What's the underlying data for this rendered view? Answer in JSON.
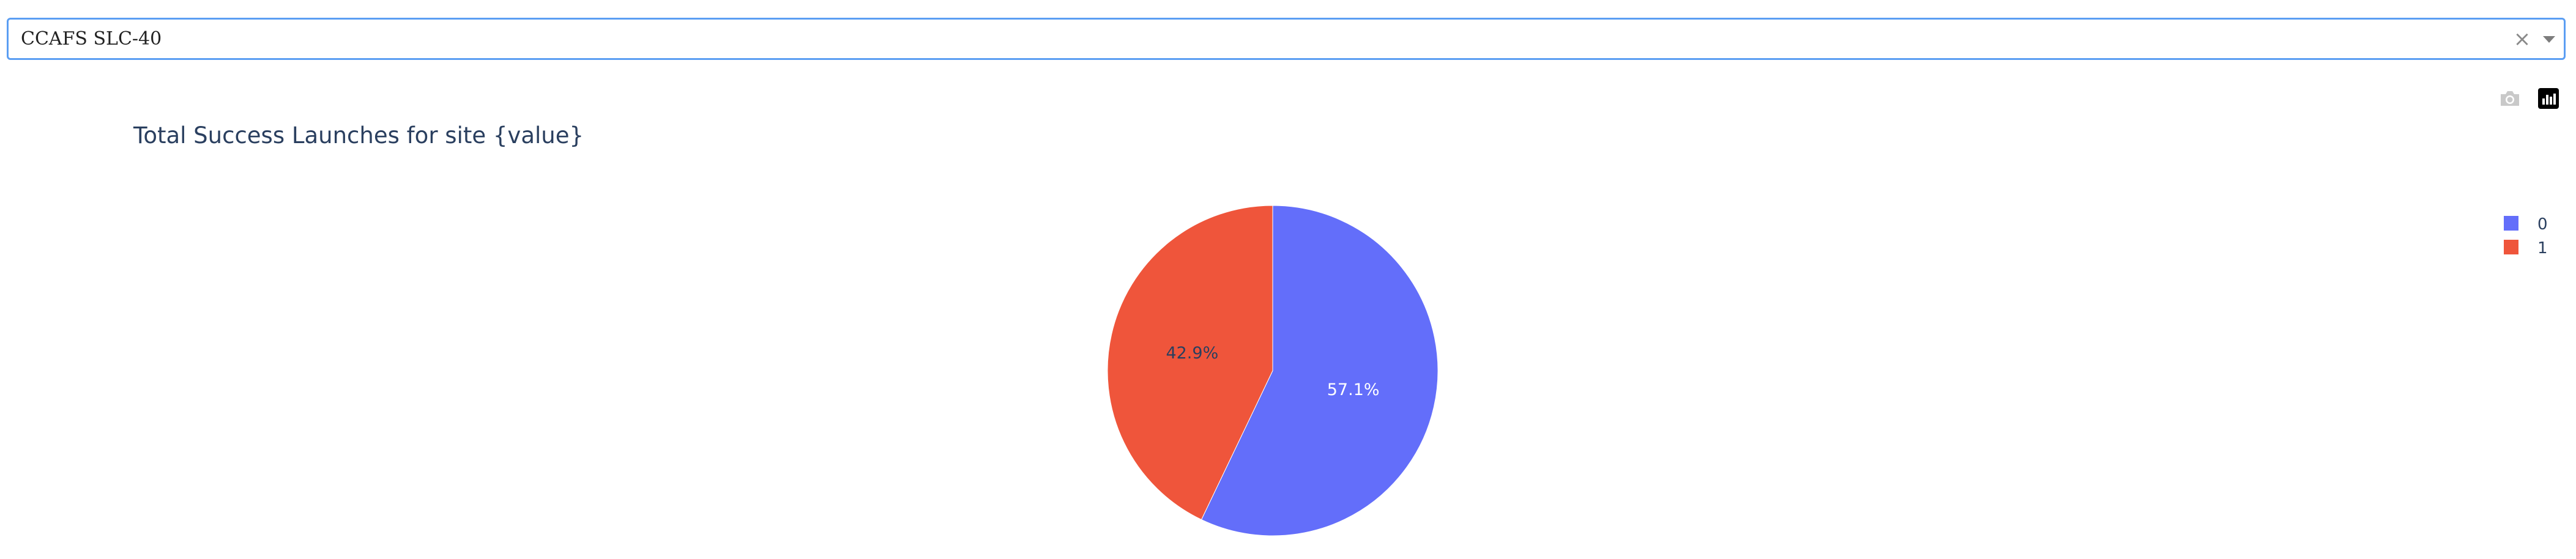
{
  "dropdown": {
    "selected_value": "CCAFS SLC-40",
    "clear_symbol": "×"
  },
  "toolbar": {
    "icons": [
      "camera-icon",
      "plotly-logo-icon"
    ]
  },
  "chart_data": {
    "type": "pie",
    "title": "Total Success Launches for site {value}",
    "labels": [
      "0",
      "1"
    ],
    "values": [
      57.1,
      42.9
    ],
    "percent_labels": [
      "57.1%",
      "42.9%"
    ],
    "colors": [
      "#636efa",
      "#ef553b"
    ],
    "legend": {
      "placement": "top-right",
      "entries": [
        "0",
        "1"
      ]
    }
  }
}
